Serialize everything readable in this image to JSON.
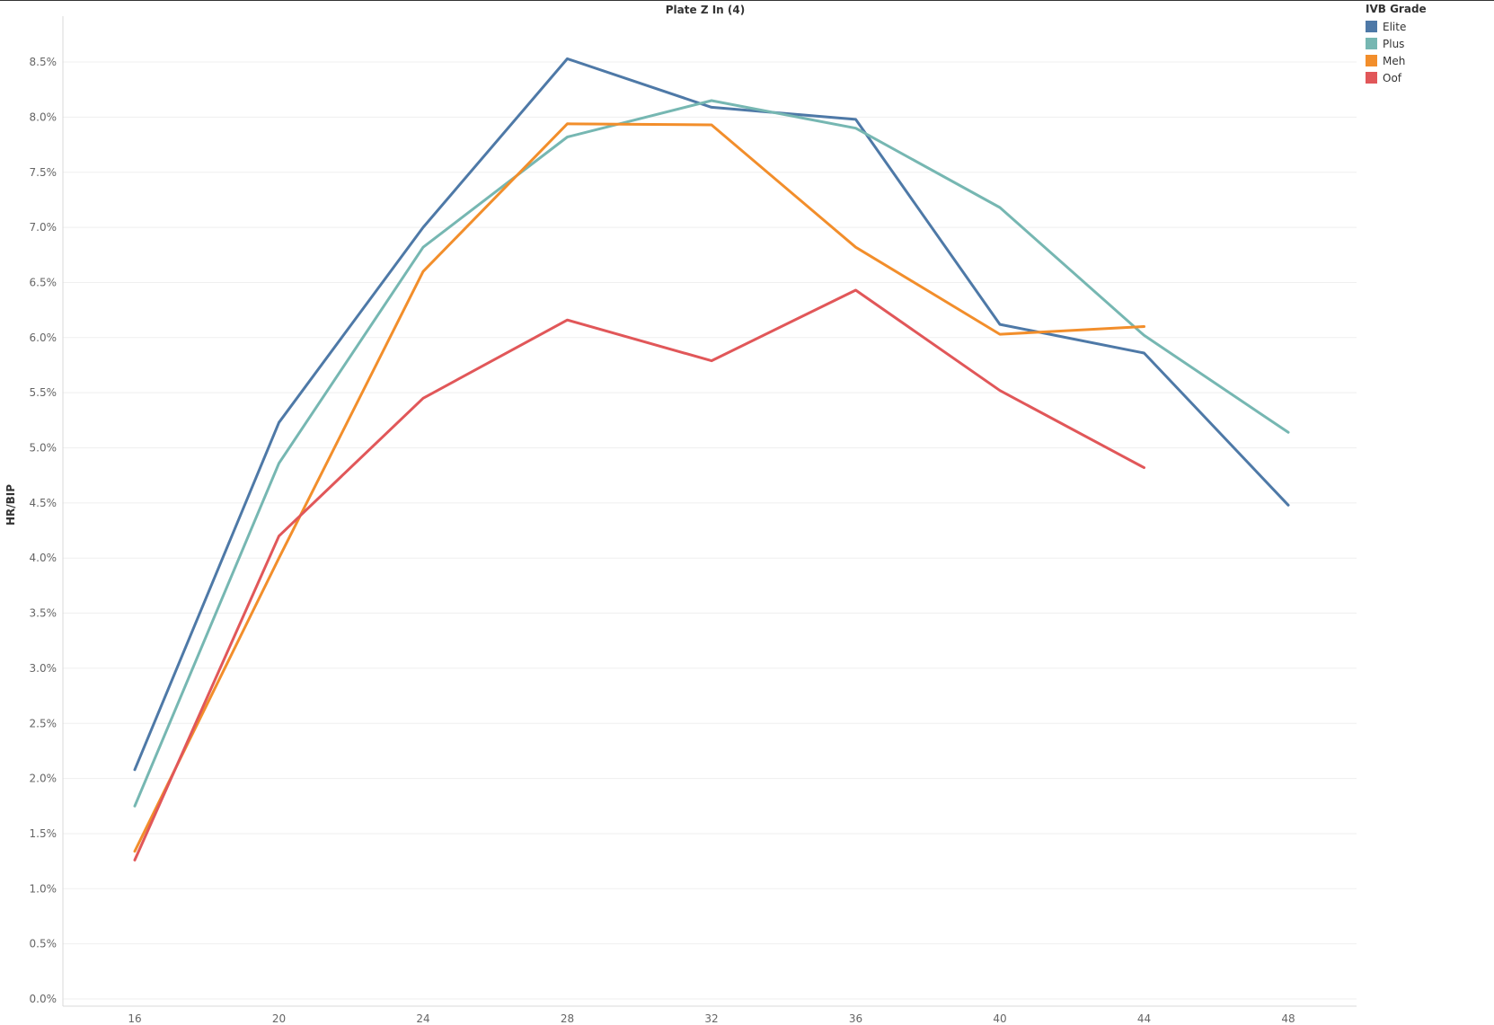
{
  "chart_data": {
    "type": "line",
    "title": "Plate Z In (4)",
    "xlabel": "",
    "ylabel": "HR/BIP",
    "x": [
      16,
      20,
      24,
      28,
      32,
      36,
      40,
      44,
      48
    ],
    "x_ticks": [
      "16",
      "20",
      "24",
      "28",
      "32",
      "36",
      "40",
      "44",
      "48"
    ],
    "xlim": [
      14,
      50.2
    ],
    "ylim": [
      0,
      9.0
    ],
    "y_ticks": [
      "0.0%",
      "0.5%",
      "1.0%",
      "1.5%",
      "2.0%",
      "2.5%",
      "3.0%",
      "3.5%",
      "4.0%",
      "4.5%",
      "5.0%",
      "5.5%",
      "6.0%",
      "6.5%",
      "7.0%",
      "7.5%",
      "8.0%",
      "8.5%"
    ],
    "grid": true,
    "legend": {
      "title": "IVB Grade",
      "placement": "top-right"
    },
    "series": [
      {
        "name": "Elite",
        "color": "#4e79a7",
        "values": [
          2.08,
          5.23,
          7.0,
          8.53,
          8.09,
          7.98,
          6.12,
          5.86,
          4.48
        ]
      },
      {
        "name": "Plus",
        "color": "#76b7b2",
        "values": [
          1.75,
          4.86,
          6.82,
          7.82,
          8.15,
          7.9,
          7.18,
          6.02,
          5.14
        ]
      },
      {
        "name": "Meh",
        "color": "#f28e2b",
        "values": [
          1.34,
          4.0,
          6.6,
          7.94,
          7.93,
          6.82,
          6.03,
          6.1,
          null
        ]
      },
      {
        "name": "Oof",
        "color": "#e15759",
        "values": [
          1.26,
          4.2,
          5.45,
          6.16,
          5.79,
          6.43,
          5.52,
          4.82,
          null
        ]
      }
    ]
  }
}
